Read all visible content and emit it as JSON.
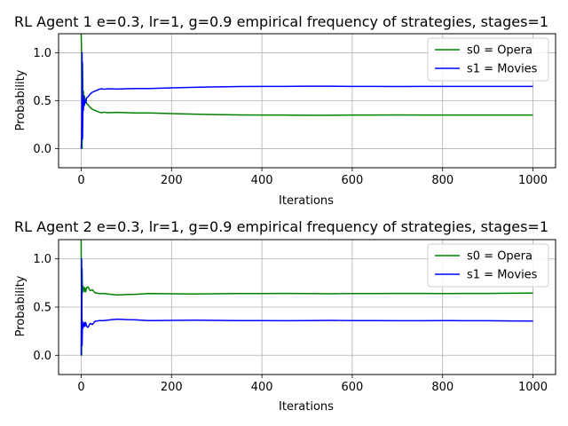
{
  "figure": {
    "background": "#ffffff"
  },
  "chart_data": [
    {
      "type": "line",
      "title": "RL Agent 1 e=0.3, lr=1, g=0.9 empirical frequency of strategies, stages=1",
      "xlabel": "Iterations",
      "ylabel": "Probability",
      "xlim": [
        -50,
        1050
      ],
      "ylim": [
        -0.2,
        1.2
      ],
      "xticks": [
        0,
        200,
        400,
        600,
        800,
        1000
      ],
      "xtick_labels": [
        "0",
        "200",
        "400",
        "600",
        "800",
        "1000"
      ],
      "yticks": [
        0.0,
        0.5,
        1.0
      ],
      "ytick_labels": [
        "0.0",
        "0.5",
        "1.0"
      ],
      "grid": true,
      "legend_position": "top-right",
      "series": [
        {
          "name": "s0 = Opera",
          "color": "#008000",
          "x": [
            0,
            1,
            2,
            3,
            4,
            5,
            6,
            7,
            8,
            10,
            12,
            15,
            20,
            25,
            30,
            35,
            40,
            45,
            50,
            60,
            80,
            100,
            120,
            150,
            200,
            250,
            300,
            350,
            400,
            450,
            500,
            550,
            600,
            650,
            700,
            750,
            800,
            850,
            900,
            950,
            1000
          ],
          "y": [
            1.2,
            1.0,
            0.0,
            0.9,
            0.55,
            0.6,
            0.45,
            0.55,
            0.5,
            0.52,
            0.47,
            0.46,
            0.43,
            0.41,
            0.4,
            0.39,
            0.38,
            0.375,
            0.38,
            0.375,
            0.378,
            0.375,
            0.372,
            0.372,
            0.365,
            0.36,
            0.355,
            0.352,
            0.35,
            0.35,
            0.348,
            0.348,
            0.35,
            0.35,
            0.352,
            0.35,
            0.35,
            0.35,
            0.35,
            0.35,
            0.35
          ]
        },
        {
          "name": "s1 = Movies",
          "color": "#0000ff",
          "x": [
            0,
            1,
            2,
            3,
            4,
            5,
            6,
            7,
            8,
            10,
            12,
            15,
            20,
            25,
            30,
            35,
            40,
            45,
            50,
            60,
            80,
            100,
            120,
            150,
            200,
            250,
            300,
            350,
            400,
            450,
            500,
            550,
            600,
            650,
            700,
            750,
            800,
            850,
            900,
            950,
            1000
          ],
          "y": [
            0.0,
            0.1,
            1.0,
            0.1,
            0.45,
            0.4,
            0.55,
            0.45,
            0.5,
            0.48,
            0.53,
            0.54,
            0.57,
            0.59,
            0.6,
            0.61,
            0.62,
            0.625,
            0.62,
            0.625,
            0.622,
            0.625,
            0.628,
            0.628,
            0.635,
            0.64,
            0.645,
            0.648,
            0.65,
            0.65,
            0.652,
            0.652,
            0.65,
            0.65,
            0.648,
            0.65,
            0.65,
            0.65,
            0.65,
            0.65,
            0.65
          ]
        }
      ]
    },
    {
      "type": "line",
      "title": "RL Agent 2 e=0.3, lr=1, g=0.9 empirical frequency of strategies, stages=1",
      "xlabel": "Iterations",
      "ylabel": "Probability",
      "xlim": [
        -50,
        1050
      ],
      "ylim": [
        -0.2,
        1.2
      ],
      "xticks": [
        0,
        200,
        400,
        600,
        800,
        1000
      ],
      "xtick_labels": [
        "0",
        "200",
        "400",
        "600",
        "800",
        "1000"
      ],
      "yticks": [
        0.0,
        0.5,
        1.0
      ],
      "ytick_labels": [
        "0.0",
        "0.5",
        "1.0"
      ],
      "grid": true,
      "legend_position": "top-right",
      "series": [
        {
          "name": "s0 = Opera",
          "color": "#008000",
          "x": [
            0,
            1,
            2,
            3,
            4,
            5,
            6,
            7,
            8,
            10,
            12,
            15,
            20,
            25,
            30,
            40,
            50,
            60,
            80,
            100,
            120,
            150,
            200,
            250,
            300,
            350,
            400,
            450,
            500,
            550,
            600,
            650,
            700,
            750,
            800,
            850,
            900,
            950,
            1000
          ],
          "y": [
            1.2,
            0.0,
            0.9,
            0.65,
            0.72,
            0.68,
            0.7,
            0.66,
            0.7,
            0.66,
            0.7,
            0.71,
            0.67,
            0.68,
            0.65,
            0.64,
            0.64,
            0.635,
            0.625,
            0.63,
            0.632,
            0.64,
            0.638,
            0.636,
            0.638,
            0.64,
            0.64,
            0.642,
            0.64,
            0.638,
            0.64,
            0.64,
            0.642,
            0.642,
            0.64,
            0.642,
            0.642,
            0.644,
            0.645
          ]
        },
        {
          "name": "s1 = Movies",
          "color": "#0000ff",
          "x": [
            0,
            1,
            2,
            3,
            4,
            5,
            6,
            7,
            8,
            10,
            12,
            15,
            20,
            25,
            30,
            40,
            50,
            60,
            80,
            100,
            120,
            150,
            200,
            250,
            300,
            350,
            400,
            450,
            500,
            550,
            600,
            650,
            700,
            750,
            800,
            850,
            900,
            950,
            1000
          ],
          "y": [
            0.0,
            1.0,
            0.1,
            0.35,
            0.28,
            0.32,
            0.3,
            0.34,
            0.3,
            0.34,
            0.3,
            0.29,
            0.33,
            0.32,
            0.35,
            0.36,
            0.36,
            0.365,
            0.375,
            0.37,
            0.368,
            0.36,
            0.362,
            0.364,
            0.362,
            0.36,
            0.36,
            0.358,
            0.36,
            0.362,
            0.36,
            0.36,
            0.358,
            0.358,
            0.36,
            0.358,
            0.358,
            0.356,
            0.355
          ]
        }
      ]
    }
  ]
}
